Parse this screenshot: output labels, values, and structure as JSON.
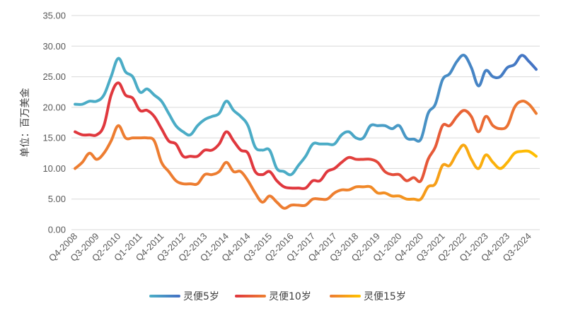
{
  "chart_data": {
    "type": "line",
    "title": "",
    "xlabel": "",
    "ylabel": "单位：百万美金",
    "ylim": [
      0,
      35
    ],
    "yticks": [
      "0.00",
      "5.00",
      "10.00",
      "15.00",
      "20.00",
      "25.00",
      "30.00",
      "35.00"
    ],
    "grid": "horizontal",
    "legend_position": "bottom",
    "x": [
      "Q4-2008",
      "Q1-2009",
      "Q2-2009",
      "Q3-2009",
      "Q4-2009",
      "Q1-2010",
      "Q2-2010",
      "Q3-2010",
      "Q4-2010",
      "Q1-2011",
      "Q2-2011",
      "Q3-2011",
      "Q4-2011",
      "Q1-2012",
      "Q2-2012",
      "Q3-2012",
      "Q4-2012",
      "Q1-2013",
      "Q2-2013",
      "Q3-2013",
      "Q4-2013",
      "Q1-2014",
      "Q2-2014",
      "Q3-2014",
      "Q4-2014",
      "Q1-2015",
      "Q2-2015",
      "Q3-2015",
      "Q4-2015",
      "Q1-2016",
      "Q2-2016",
      "Q3-2016",
      "Q4-2016",
      "Q1-2017",
      "Q2-2017",
      "Q3-2017",
      "Q4-2017",
      "Q1-2018",
      "Q2-2018",
      "Q3-2018",
      "Q4-2018",
      "Q1-2019",
      "Q2-2019",
      "Q3-2019",
      "Q4-2019",
      "Q1-2020",
      "Q2-2020",
      "Q3-2020",
      "Q4-2020",
      "Q1-2021",
      "Q2-2021",
      "Q3-2021",
      "Q4-2021",
      "Q1-2022",
      "Q2-2022",
      "Q3-2022",
      "Q4-2022",
      "Q1-2023",
      "Q2-2023",
      "Q3-2023",
      "Q4-2023",
      "Q1-2024",
      "Q2-2024",
      "Q3-2024",
      "Q4-2024"
    ],
    "x_tick_labels": [
      "Q4-2008",
      "Q3-2009",
      "Q2-2010",
      "Q1-2011",
      "Q4-2011",
      "Q3-2012",
      "Q2-2013",
      "Q1-2014",
      "Q4-2014",
      "Q3-2015",
      "Q2-2016",
      "Q1-2017",
      "Q4-2017",
      "Q3-2018",
      "Q2-2019",
      "Q1-2020",
      "Q4-2020",
      "Q3-2021",
      "Q2-2022",
      "Q1-2023",
      "Q4-2023",
      "Q3-2024"
    ],
    "series": [
      {
        "name": "灵便5岁",
        "color_start": "#4BACC6",
        "color_end": "#4472C4",
        "values": [
          20.5,
          20.5,
          21.0,
          21.0,
          22.0,
          25.0,
          28.0,
          25.8,
          25.0,
          22.5,
          23.0,
          22.0,
          21.0,
          19.0,
          17.0,
          16.0,
          15.5,
          17.0,
          18.0,
          18.5,
          19.0,
          21.0,
          19.5,
          18.5,
          17.0,
          13.5,
          13.0,
          13.0,
          10.0,
          9.5,
          9.0,
          10.5,
          12.0,
          14.0,
          14.0,
          14.0,
          14.0,
          15.5,
          16.0,
          15.0,
          15.0,
          17.0,
          17.0,
          17.0,
          16.5,
          17.0,
          15.0,
          14.8,
          14.8,
          19.0,
          20.5,
          24.5,
          25.5,
          27.5,
          28.5,
          26.5,
          23.5,
          26.0,
          25.0,
          25.0,
          26.5,
          27.0,
          28.5,
          27.5,
          26.2
        ]
      },
      {
        "name": "灵便10岁",
        "color_start": "#E0383E",
        "color_end": "#ED7D31",
        "values": [
          16.0,
          15.5,
          15.5,
          15.5,
          17.0,
          22.0,
          24.0,
          22.0,
          21.5,
          19.5,
          19.5,
          18.5,
          16.5,
          14.5,
          14.0,
          12.0,
          12.0,
          12.0,
          13.0,
          13.0,
          14.0,
          16.0,
          14.5,
          13.0,
          12.5,
          9.5,
          9.0,
          9.5,
          8.0,
          7.0,
          6.8,
          6.8,
          6.8,
          8.0,
          8.0,
          9.5,
          10.0,
          11.0,
          11.8,
          11.5,
          11.5,
          11.5,
          11.0,
          9.5,
          9.0,
          9.0,
          8.0,
          8.5,
          8.0,
          11.5,
          13.5,
          17.0,
          17.0,
          18.5,
          19.5,
          18.5,
          16.0,
          18.5,
          17.0,
          16.5,
          17.0,
          20.0,
          21.0,
          20.5,
          19.0
        ]
      },
      {
        "name": "灵便15岁",
        "color_start": "#ED7D31",
        "color_end": "#FFC000",
        "values": [
          10.0,
          11.0,
          12.5,
          11.5,
          12.5,
          14.5,
          17.0,
          15.0,
          15.0,
          15.0,
          15.0,
          14.5,
          11.0,
          9.5,
          8.0,
          7.5,
          7.5,
          7.5,
          9.0,
          9.0,
          9.5,
          11.0,
          9.5,
          9.5,
          8.0,
          6.0,
          4.5,
          5.5,
          4.5,
          3.5,
          4.0,
          4.0,
          4.0,
          5.0,
          5.0,
          5.0,
          6.0,
          6.5,
          6.5,
          7.0,
          7.0,
          7.0,
          6.0,
          6.0,
          5.5,
          5.5,
          5.0,
          5.0,
          5.0,
          7.0,
          7.5,
          10.5,
          10.5,
          12.5,
          13.8,
          11.5,
          10.0,
          12.2,
          11.0,
          10.0,
          11.0,
          12.5,
          12.8,
          12.8,
          12.0
        ]
      }
    ]
  }
}
